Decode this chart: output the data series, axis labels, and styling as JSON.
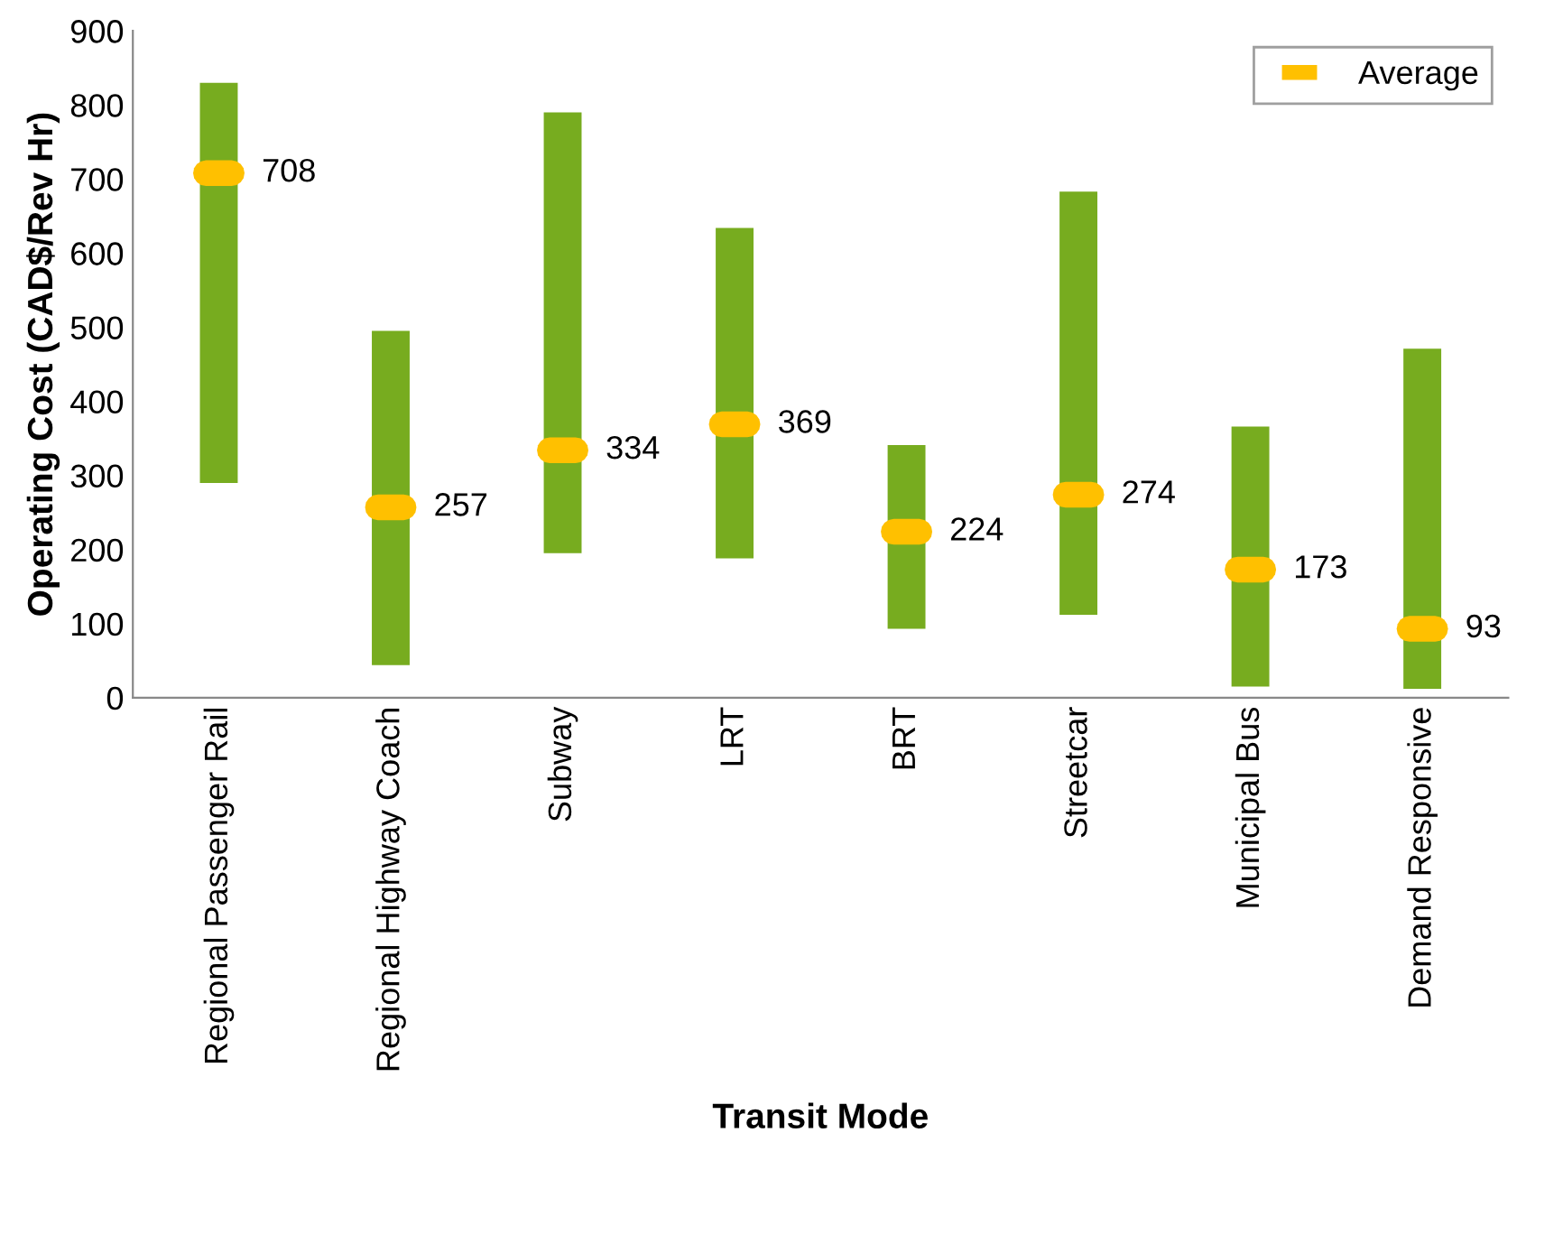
{
  "chart_data": {
    "type": "bar",
    "xlabel": "Transit Mode",
    "ylabel": "Operating Cost (CAD$/Rev Hr)",
    "categories": [
      "Regional Passenger Rail",
      "Regional Highway Coach",
      "Subway",
      "LRT",
      "BRT",
      "Streetcar",
      "Municipal Bus",
      "Demand Responsive"
    ],
    "series": [
      {
        "color": "#77ac1f",
        "base": [
          290,
          44,
          195,
          188,
          93,
          112,
          15,
          12
        ],
        "values": [
          540,
          451,
          595,
          446,
          248,
          571,
          351,
          459
        ]
      },
      {
        "name": "Average",
        "type": "scatter",
        "color": "#ffc000",
        "x": [
          "Regional Passenger Rail",
          "Regional Highway Coach",
          "Subway",
          "LRT",
          "BRT",
          "Streetcar",
          "Municipal Bus",
          "Demand Responsive"
        ],
        "values": [
          708,
          257,
          334,
          369,
          224,
          274,
          173,
          93
        ],
        "value_labels": [
          "708",
          "257",
          "334",
          "369",
          "224",
          "274",
          "173",
          "93"
        ]
      }
    ],
    "ylim": [
      0,
      900
    ],
    "yticks": [
      0,
      100,
      200,
      300,
      400,
      500,
      600,
      700,
      800,
      900
    ],
    "grid": false,
    "legend": "top right"
  }
}
